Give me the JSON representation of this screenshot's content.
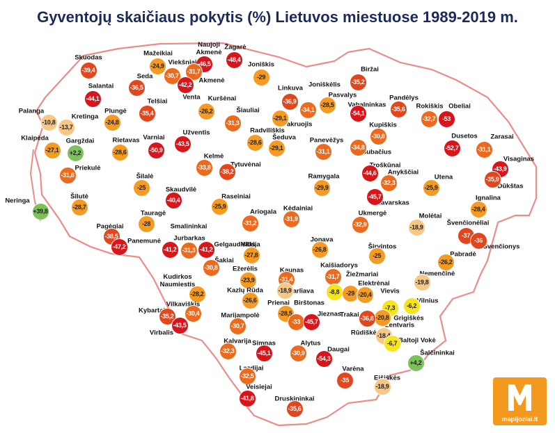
{
  "title": "Gyventojų skaičiaus pokytis (%) Lietuvos miestuose 1989-2019 m.",
  "cities": [
    {
      "name": "Skuodas",
      "value": "-39,4",
      "color": "#e2461c"
    },
    {
      "name": "Mažeikiai",
      "value": "-24,9",
      "color": "#f59b23"
    },
    {
      "name": "Naujoji Akmenė",
      "value": "-46,5",
      "color": "#d7151b"
    },
    {
      "name": "Žagarė",
      "value": "-48,4",
      "color": "#d7151b"
    },
    {
      "name": "Viekšniai",
      "value": "-30,7",
      "color": "#ec6a1e"
    },
    {
      "name": "Akmenė",
      "value": "-31,7",
      "color": "#ec6a1e"
    },
    {
      "name": "Venta",
      "value": "-42,2",
      "color": "#d7151b"
    },
    {
      "name": "Seda",
      "value": "-36,5",
      "color": "#e2461c"
    },
    {
      "name": "Joniškis",
      "value": "-29",
      "color": "#f59b23"
    },
    {
      "name": "Linkuva",
      "value": "-36,9",
      "color": "#e2461c"
    },
    {
      "name": "Joniškėlis",
      "value": "-34,1",
      "color": "#ec6a1e"
    },
    {
      "name": "Pasvalys",
      "value": "-28,5",
      "color": "#f59b23"
    },
    {
      "name": "Biržai",
      "value": "-35,2",
      "color": "#e2461c"
    },
    {
      "name": "Salantai",
      "value": "-44,1",
      "color": "#d7151b"
    },
    {
      "name": "Telšiai",
      "value": "-35,4",
      "color": "#e2461c"
    },
    {
      "name": "Kuršėnai",
      "value": "-26,2",
      "color": "#f59b23"
    },
    {
      "name": "Šiauliai",
      "value": "-31,3",
      "color": "#ec6a1e"
    },
    {
      "name": "Pakruojis",
      "value": "-29,1",
      "color": "#f59b23"
    },
    {
      "name": "Vabalninkas",
      "value": "-54,1",
      "color": "#d7151b"
    },
    {
      "name": "Pandėlys",
      "value": "-35,6",
      "color": "#e2461c"
    },
    {
      "name": "Rokiškis",
      "value": "-32,7",
      "color": "#ec6a1e"
    },
    {
      "name": "Obeliai",
      "value": "-53",
      "color": "#d7151b"
    },
    {
      "name": "Palanga",
      "value": "-10,8",
      "color": "#f7c785"
    },
    {
      "name": "Kretinga",
      "value": "-13,7",
      "color": "#f7c785"
    },
    {
      "name": "Plungė",
      "value": "-24,8",
      "color": "#f59b23"
    },
    {
      "name": "Varniai",
      "value": "-50,9",
      "color": "#d7151b"
    },
    {
      "name": "Užventis",
      "value": "-43,5",
      "color": "#d7151b"
    },
    {
      "name": "Radviliškis",
      "value": "-28,6",
      "color": "#f59b23"
    },
    {
      "name": "Šeduva",
      "value": "-29,1",
      "color": "#f59b23"
    },
    {
      "name": "Kupiškis",
      "value": "-30,8",
      "color": "#ec6a1e"
    },
    {
      "name": "Panevėžys",
      "value": "-31,1",
      "color": "#ec6a1e"
    },
    {
      "name": "Subačius",
      "value": "-34,8",
      "color": "#ec6a1e"
    },
    {
      "name": "Dusetos",
      "value": "-52,7",
      "color": "#d7151b"
    },
    {
      "name": "Zarasai",
      "value": "-31,1",
      "color": "#ec6a1e"
    },
    {
      "name": "Klaipėda",
      "value": "-27,1",
      "color": "#f59b23"
    },
    {
      "name": "Gargždai",
      "value": "+2,2",
      "color": "#7cc15a"
    },
    {
      "name": "Rietavas",
      "value": "-28,6",
      "color": "#f59b23"
    },
    {
      "name": "Kelmė",
      "value": "-33,8",
      "color": "#ec6a1e"
    },
    {
      "name": "Tytuvėnai",
      "value": "-38,2",
      "color": "#e2461c"
    },
    {
      "name": "Priekulė",
      "value": "-31,8",
      "color": "#ec6a1e"
    },
    {
      "name": "Šilalė",
      "value": "-25",
      "color": "#f59b23"
    },
    {
      "name": "Troškūnai",
      "value": "-44,6",
      "color": "#d7151b"
    },
    {
      "name": "Anykščiai",
      "value": "-32,3",
      "color": "#ec6a1e"
    },
    {
      "name": "Utena",
      "value": "-25,9",
      "color": "#f59b23"
    },
    {
      "name": "Visaginas",
      "value": "-43,9",
      "color": "#d7151b"
    },
    {
      "name": "Dūkštas",
      "value": "-35,9",
      "color": "#e2461c"
    },
    {
      "name": "Ramygala",
      "value": "-29,9",
      "color": "#f59b23"
    },
    {
      "name": "Skaudvilė",
      "value": "-40,4",
      "color": "#d7151b"
    },
    {
      "name": "Raseiniai",
      "value": "-25,9",
      "color": "#f59b23"
    },
    {
      "name": "Kavarskas",
      "value": "-45,7",
      "color": "#d7151b"
    },
    {
      "name": "Ignalina",
      "value": "-28,4",
      "color": "#f59b23"
    },
    {
      "name": "Šilutė",
      "value": "-28,7",
      "color": "#f59b23"
    },
    {
      "name": "Neringa",
      "value": "+39,8",
      "color": "#7cc15a"
    },
    {
      "name": "Tauragė",
      "value": "-28",
      "color": "#f59b23"
    },
    {
      "name": "Ariogala",
      "value": "-31,2",
      "color": "#ec6a1e"
    },
    {
      "name": "Kėdainiai",
      "value": "-31,9",
      "color": "#ec6a1e"
    },
    {
      "name": "Ukmergė",
      "value": "-32,9",
      "color": "#ec6a1e"
    },
    {
      "name": "Molėtai",
      "value": "-18,9",
      "color": "#f7c785"
    },
    {
      "name": "Švenčionėliai",
      "value": "-37",
      "color": "#e2461c"
    },
    {
      "name": "Švenčionys",
      "value": "-36",
      "color": "#e2461c"
    },
    {
      "name": "Smalininkai",
      "value": "-41,2",
      "color": "#d7151b"
    },
    {
      "name": "Jurbarkas",
      "value": "-31,3",
      "color": "#ec6a1e"
    },
    {
      "name": "Gelgaudiškis",
      "value": "-41,2",
      "color": "#d7151b"
    },
    {
      "name": "Pagėgiai",
      "value": "-38,5",
      "color": "#e2461c"
    },
    {
      "name": "Panemunė",
      "value": "-47,2",
      "color": "#d7151b"
    },
    {
      "name": "Vilkija",
      "value": "-27,8",
      "color": "#f59b23"
    },
    {
      "name": "Jonava",
      "value": "-26,8",
      "color": "#f59b23"
    },
    {
      "name": "Širvintos",
      "value": "-25",
      "color": "#f59b23"
    },
    {
      "name": "Pabradė",
      "value": "-26,2",
      "color": "#f59b23"
    },
    {
      "name": "Šakiai",
      "value": "-30,8",
      "color": "#ec6a1e"
    },
    {
      "name": "Nemenčinė",
      "value": "-19,8",
      "color": "#f7c785"
    },
    {
      "name": "Ežerėlis",
      "value": "-23,9",
      "color": "#f59b23"
    },
    {
      "name": "Kaunas",
      "value": "-31,4",
      "color": "#ec6a1e"
    },
    {
      "name": "Kaišiadorys",
      "value": "-31,7",
      "color": "#ec6a1e"
    },
    {
      "name": "Žiežmariai",
      "value": "-8,8",
      "color": "#f5e51a"
    },
    {
      "name": "Elektrėnai",
      "value": "-29",
      "color": "#f59b23"
    },
    {
      "name": "Vievis",
      "value": "-20,4",
      "color": "#f59b23"
    },
    {
      "name": "Kudirkos Naumiestis",
      "value": "-28,2",
      "color": "#f59b23"
    },
    {
      "name": "Kazlų Rūda",
      "value": "-26,6",
      "color": "#f59b23"
    },
    {
      "name": "Garliava",
      "value": "-18,9",
      "color": "#f7c785"
    },
    {
      "name": "Vilnius",
      "value": "-6,2",
      "color": "#f5e51a"
    },
    {
      "name": "Grigiškės",
      "value": "-7,3",
      "color": "#f5e51a"
    },
    {
      "name": "Lentvaris",
      "value": "-20,8",
      "color": "#f59b23"
    },
    {
      "name": "Trakai",
      "value": "-36,8",
      "color": "#e2461c"
    },
    {
      "name": "Kybartai",
      "value": "-35,2",
      "color": "#e2461c"
    },
    {
      "name": "Vilkaviškis",
      "value": "-30,4",
      "color": "#ec6a1e"
    },
    {
      "name": "Virbalis",
      "value": "-43,5",
      "color": "#d7151b"
    },
    {
      "name": "Marijampolė",
      "value": "-30,7",
      "color": "#ec6a1e"
    },
    {
      "name": "Prienai",
      "value": "-28,5",
      "color": "#f59b23"
    },
    {
      "name": "Birštonas",
      "value": "-33",
      "color": "#ec6a1e"
    },
    {
      "name": "Jieznas",
      "value": "-45,7",
      "color": "#d7151b"
    },
    {
      "name": "Rūdiškės",
      "value": "-18,4",
      "color": "#f7c785"
    },
    {
      "name": "Baltoji Vokė",
      "value": "-6,7",
      "color": "#f5e51a"
    },
    {
      "name": "Kalvarija",
      "value": "-32,3",
      "color": "#ec6a1e"
    },
    {
      "name": "Simnas",
      "value": "-45,1",
      "color": "#d7151b"
    },
    {
      "name": "Alytus",
      "value": "-30,9",
      "color": "#ec6a1e"
    },
    {
      "name": "Daugai",
      "value": "-54,3",
      "color": "#d7151b"
    },
    {
      "name": "Šalčininkai",
      "value": "+4,2",
      "color": "#7cc15a"
    },
    {
      "name": "Eišiškės",
      "value": "-18,9",
      "color": "#f7c785"
    },
    {
      "name": "Lazdijai",
      "value": "-32,5",
      "color": "#ec6a1e"
    },
    {
      "name": "Varėna",
      "value": "-35",
      "color": "#e2461c"
    },
    {
      "name": "Veisiejai",
      "value": "-41,8",
      "color": "#d7151b"
    },
    {
      "name": "Druskininkai",
      "value": "-35,6",
      "color": "#e2461c"
    }
  ],
  "logo": {
    "site": "mapijoziai.lt"
  }
}
